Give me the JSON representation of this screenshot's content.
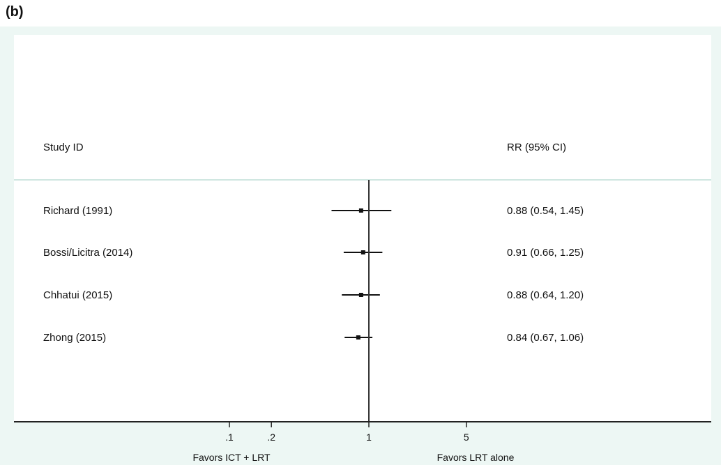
{
  "panel_label": "(b)",
  "colors": {
    "background": "#edf7f4",
    "plot": "#ffffff",
    "ink": "#111111",
    "divider": "#cfe6e0"
  },
  "chart_data": {
    "type": "forest",
    "header_left": "Study ID",
    "header_right": "RR (95% CI)",
    "scale": "log",
    "xlim": [
      0.05,
      12
    ],
    "null_line": 1,
    "ticks": [
      {
        "value": 0.1,
        "label": ".1"
      },
      {
        "value": 0.2,
        "label": ".2"
      },
      {
        "value": 1,
        "label": "1"
      },
      {
        "value": 5,
        "label": "5"
      }
    ],
    "xlabel_left": "Favors ICT + LRT",
    "xlabel_right": "Favors LRT alone",
    "studies": [
      {
        "name": "Richard (1991)",
        "rr": 0.88,
        "lo": 0.54,
        "hi": 1.45,
        "label": "0.88 (0.54, 1.45)"
      },
      {
        "name": "Bossi/Licitra (2014)",
        "rr": 0.91,
        "lo": 0.66,
        "hi": 1.25,
        "label": "0.91 (0.66, 1.25)"
      },
      {
        "name": "Chhatui (2015)",
        "rr": 0.88,
        "lo": 0.64,
        "hi": 1.2,
        "label": "0.88 (0.64, 1.20)"
      },
      {
        "name": "Zhong (2015)",
        "rr": 0.84,
        "lo": 0.67,
        "hi": 1.06,
        "label": "0.84 (0.67, 1.06)"
      }
    ]
  }
}
